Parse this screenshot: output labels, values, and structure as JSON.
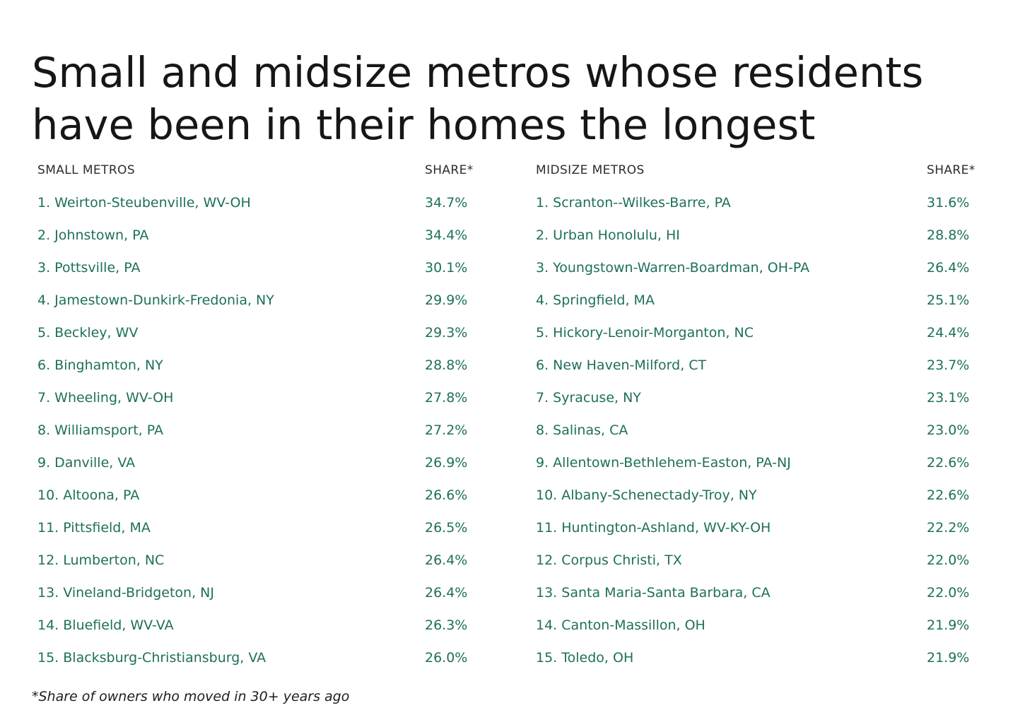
{
  "title": "Small and midsize metros whose residents have been in their homes the longest",
  "footnote": "*Share of owners who moved in 30+ years ago",
  "colors": {
    "title_text": "#161616",
    "header_text": "#2d2d2d",
    "row_text_green": "#1e6f5c",
    "background": "#ffffff"
  },
  "chart_data": {
    "type": "table",
    "title": "Small and midsize metros whose residents have been in their homes the longest",
    "footnote": "*Share of owners who moved in 30+ years ago",
    "tables": [
      {
        "id": "small-metros",
        "header": {
          "col1": "SMALL METROS",
          "col2": "SHARE*"
        },
        "rows": [
          {
            "rank": 1,
            "metro": "Weirton-Steubenville, WV-OH",
            "share_pct": 34.7,
            "label": "1. Weirton-Steubenville, WV-OH",
            "share": "34.7%"
          },
          {
            "rank": 2,
            "metro": "Johnstown, PA",
            "share_pct": 34.4,
            "label": "2. Johnstown, PA",
            "share": "34.4%"
          },
          {
            "rank": 3,
            "metro": "Pottsville, PA",
            "share_pct": 30.1,
            "label": "3. Pottsville, PA",
            "share": "30.1%"
          },
          {
            "rank": 4,
            "metro": "Jamestown-Dunkirk-Fredonia, NY",
            "share_pct": 29.9,
            "label": "4. Jamestown-Dunkirk-Fredonia, NY",
            "share": "29.9%"
          },
          {
            "rank": 5,
            "metro": "Beckley, WV",
            "share_pct": 29.3,
            "label": "5. Beckley, WV",
            "share": "29.3%"
          },
          {
            "rank": 6,
            "metro": "Binghamton, NY",
            "share_pct": 28.8,
            "label": "6. Binghamton, NY",
            "share": "28.8%"
          },
          {
            "rank": 7,
            "metro": "Wheeling, WV-OH",
            "share_pct": 27.8,
            "label": "7. Wheeling, WV-OH",
            "share": "27.8%"
          },
          {
            "rank": 8,
            "metro": "Williamsport, PA",
            "share_pct": 27.2,
            "label": "8. Williamsport, PA",
            "share": "27.2%"
          },
          {
            "rank": 9,
            "metro": "Danville, VA",
            "share_pct": 26.9,
            "label": "9. Danville, VA",
            "share": "26.9%"
          },
          {
            "rank": 10,
            "metro": "Altoona, PA",
            "share_pct": 26.6,
            "label": "10. Altoona, PA",
            "share": "26.6%"
          },
          {
            "rank": 11,
            "metro": "Pittsfield, MA",
            "share_pct": 26.5,
            "label": "11. Pittsfield, MA",
            "share": "26.5%"
          },
          {
            "rank": 12,
            "metro": "Lumberton, NC",
            "share_pct": 26.4,
            "label": "12. Lumberton, NC",
            "share": "26.4%"
          },
          {
            "rank": 13,
            "metro": "Vineland-Bridgeton, NJ",
            "share_pct": 26.4,
            "label": "13. Vineland-Bridgeton, NJ",
            "share": "26.4%"
          },
          {
            "rank": 14,
            "metro": "Bluefield, WV-VA",
            "share_pct": 26.3,
            "label": "14. Bluefield, WV-VA",
            "share": "26.3%"
          },
          {
            "rank": 15,
            "metro": "Blacksburg-Christiansburg, VA",
            "share_pct": 26.0,
            "label": "15. Blacksburg-Christiansburg, VA",
            "share": "26.0%"
          }
        ]
      },
      {
        "id": "midsize-metros",
        "header": {
          "col1": "MIDSIZE METROS",
          "col2": "SHARE*"
        },
        "rows": [
          {
            "rank": 1,
            "metro": "Scranton--Wilkes-Barre, PA",
            "share_pct": 31.6,
            "label": "1. Scranton--Wilkes-Barre, PA",
            "share": "31.6%"
          },
          {
            "rank": 2,
            "metro": "Urban Honolulu, HI",
            "share_pct": 28.8,
            "label": "2. Urban Honolulu, HI",
            "share": "28.8%"
          },
          {
            "rank": 3,
            "metro": "Youngstown-Warren-Boardman, OH-PA",
            "share_pct": 26.4,
            "label": "3. Youngstown-Warren-Boardman, OH-PA",
            "share": "26.4%"
          },
          {
            "rank": 4,
            "metro": "Springfield, MA",
            "share_pct": 25.1,
            "label": "4. Springfield, MA",
            "share": "25.1%"
          },
          {
            "rank": 5,
            "metro": "Hickory-Lenoir-Morganton, NC",
            "share_pct": 24.4,
            "label": "5. Hickory-Lenoir-Morganton, NC",
            "share": "24.4%"
          },
          {
            "rank": 6,
            "metro": "New Haven-Milford, CT",
            "share_pct": 23.7,
            "label": "6. New Haven-Milford, CT",
            "share": "23.7%"
          },
          {
            "rank": 7,
            "metro": "Syracuse, NY",
            "share_pct": 23.1,
            "label": "7. Syracuse, NY",
            "share": "23.1%"
          },
          {
            "rank": 8,
            "metro": "Salinas, CA",
            "share_pct": 23.0,
            "label": "8. Salinas, CA",
            "share": "23.0%"
          },
          {
            "rank": 9,
            "metro": "Allentown-Bethlehem-Easton, PA-NJ",
            "share_pct": 22.6,
            "label": "9. Allentown-Bethlehem-Easton, PA-NJ",
            "share": "22.6%"
          },
          {
            "rank": 10,
            "metro": "Albany-Schenectady-Troy, NY",
            "share_pct": 22.6,
            "label": "10. Albany-Schenectady-Troy, NY",
            "share": "22.6%"
          },
          {
            "rank": 11,
            "metro": "Huntington-Ashland, WV-KY-OH",
            "share_pct": 22.2,
            "label": "11. Huntington-Ashland, WV-KY-OH",
            "share": "22.2%"
          },
          {
            "rank": 12,
            "metro": "Corpus Christi, TX",
            "share_pct": 22.0,
            "label": "12. Corpus Christi, TX",
            "share": "22.0%"
          },
          {
            "rank": 13,
            "metro": "Santa Maria-Santa Barbara, CA",
            "share_pct": 22.0,
            "label": "13. Santa Maria-Santa Barbara, CA",
            "share": "22.0%"
          },
          {
            "rank": 14,
            "metro": "Canton-Massillon, OH",
            "share_pct": 21.9,
            "label": "14. Canton-Massillon, OH",
            "share": "21.9%"
          },
          {
            "rank": 15,
            "metro": "Toledo, OH",
            "share_pct": 21.9,
            "label": "15. Toledo, OH",
            "share": "21.9%"
          }
        ]
      }
    ]
  }
}
